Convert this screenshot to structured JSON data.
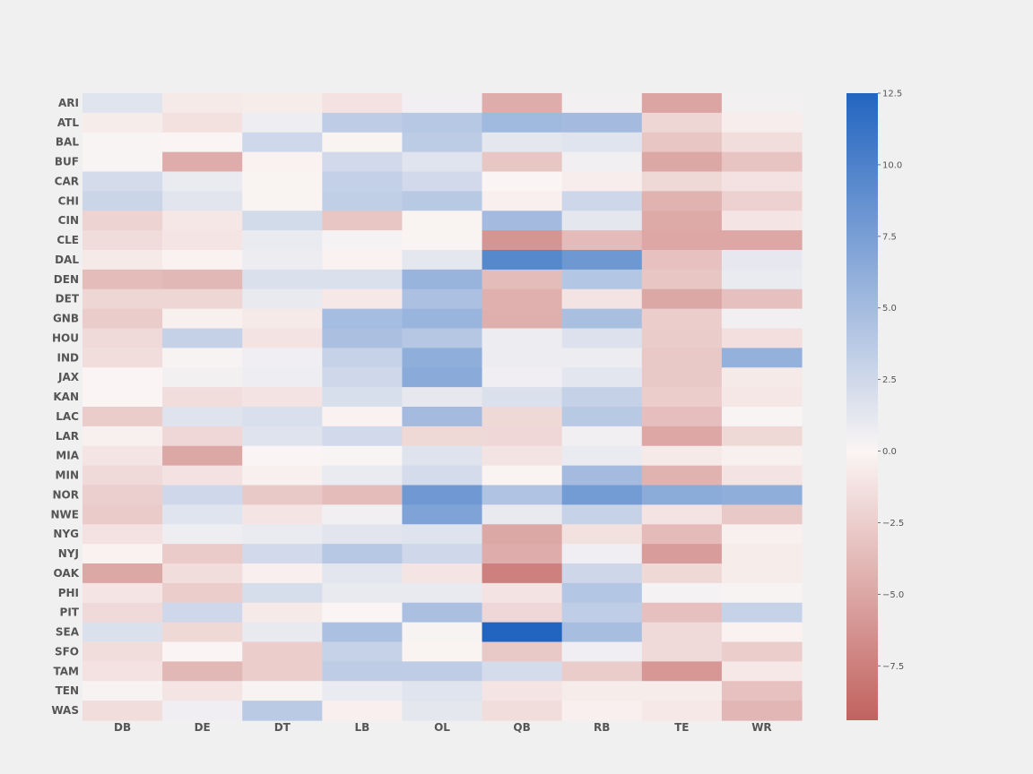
{
  "chart_data": {
    "type": "heatmap",
    "title": "",
    "xlabel": "",
    "ylabel": "",
    "columns": [
      "DB",
      "DE",
      "DT",
      "LB",
      "OL",
      "QB",
      "RB",
      "TE",
      "WR"
    ],
    "rows": [
      "ARI",
      "ATL",
      "BAL",
      "BUF",
      "CAR",
      "CHI",
      "CIN",
      "CLE",
      "DAL",
      "DEN",
      "DET",
      "GNB",
      "HOU",
      "IND",
      "JAX",
      "KAN",
      "LAC",
      "LAR",
      "MIA",
      "MIN",
      "NOR",
      "NWE",
      "NYG",
      "NYJ",
      "OAK",
      "PHI",
      "PIT",
      "SEA",
      "SFO",
      "TAM",
      "TEN",
      "WAS"
    ],
    "values": [
      [
        1.5,
        -0.7,
        -0.6,
        -1.2,
        0.5,
        -4.6,
        0.4,
        -5.1,
        0.4
      ],
      [
        -0.6,
        -1.3,
        0.7,
        3.5,
        3.9,
        5.2,
        5.0,
        -2.0,
        -0.5
      ],
      [
        0.1,
        0.0,
        2.5,
        -0.1,
        3.6,
        1.2,
        1.5,
        -3.0,
        -1.5
      ],
      [
        0.1,
        -4.7,
        -0.2,
        2.4,
        1.5,
        -3.0,
        0.5,
        -4.9,
        -3.2
      ],
      [
        2.2,
        0.9,
        -0.1,
        3.2,
        2.4,
        0.0,
        -0.5,
        -1.8,
        -1.2
      ],
      [
        2.8,
        1.4,
        -0.1,
        3.3,
        3.8,
        -0.4,
        2.6,
        -4.3,
        -2.3
      ],
      [
        -2.2,
        -0.9,
        2.3,
        -3.0,
        -0.1,
        5.0,
        1.2,
        -4.8,
        -1.0
      ],
      [
        -1.6,
        -1.0,
        0.9,
        0.3,
        -0.1,
        -6.1,
        -3.7,
        -5.0,
        -5.0
      ],
      [
        -0.7,
        -0.2,
        0.8,
        -0.2,
        1.2,
        9.5,
        8.1,
        -3.3,
        1.1
      ],
      [
        -3.6,
        -3.9,
        1.8,
        1.8,
        5.7,
        -3.6,
        4.1,
        -3.0,
        0.9
      ],
      [
        -2.0,
        -2.0,
        1.0,
        -0.8,
        4.5,
        -4.4,
        -1.1,
        -4.9,
        -3.4
      ],
      [
        -2.6,
        -0.3,
        -0.7,
        4.9,
        5.6,
        -4.5,
        4.7,
        -2.5,
        0.5
      ],
      [
        -1.7,
        3.1,
        -1.1,
        4.6,
        4.0,
        0.8,
        1.7,
        -2.6,
        -1.4
      ],
      [
        -1.5,
        0.2,
        0.6,
        3.0,
        6.2,
        0.8,
        0.8,
        -2.8,
        5.9
      ],
      [
        0.0,
        0.4,
        0.7,
        2.5,
        6.5,
        0.6,
        1.3,
        -2.8,
        -0.7
      ],
      [
        0.0,
        -1.5,
        -1.1,
        2.0,
        1.1,
        1.8,
        3.1,
        -2.5,
        -0.9
      ],
      [
        -2.6,
        1.6,
        1.9,
        -0.2,
        5.0,
        -1.8,
        3.8,
        -3.5,
        0.1
      ],
      [
        -0.3,
        -1.9,
        1.6,
        2.4,
        -1.8,
        -1.9,
        0.5,
        -5.0,
        -1.8
      ],
      [
        -1.0,
        -4.9,
        0.0,
        0.1,
        1.6,
        -1.1,
        0.9,
        -0.7,
        -0.3
      ],
      [
        -1.7,
        -1.2,
        -0.3,
        0.9,
        2.2,
        -0.1,
        5.0,
        -4.3,
        -1.1
      ],
      [
        -2.4,
        2.5,
        -2.8,
        -3.6,
        8.0,
        4.3,
        7.8,
        6.4,
        6.2
      ],
      [
        -2.7,
        1.5,
        -1.0,
        0.5,
        7.1,
        1.0,
        3.0,
        -1.1,
        -2.8
      ],
      [
        -1.2,
        0.7,
        0.9,
        1.4,
        1.6,
        -4.9,
        -1.3,
        -3.7,
        -0.3
      ],
      [
        -0.2,
        -2.7,
        2.4,
        3.9,
        2.5,
        -4.7,
        0.6,
        -5.6,
        -0.6
      ],
      [
        -4.9,
        -1.5,
        -0.4,
        1.3,
        -1.0,
        -7.5,
        2.6,
        -1.8,
        -0.6
      ],
      [
        -1.0,
        -2.5,
        2.1,
        1.0,
        1.0,
        -1.1,
        4.1,
        0.3,
        0.2
      ],
      [
        -1.7,
        2.5,
        -0.7,
        0.0,
        4.6,
        -1.9,
        3.4,
        -3.4,
        3.0
      ],
      [
        1.8,
        -1.8,
        1.0,
        4.5,
        0.2,
        12.5,
        4.8,
        -1.7,
        -0.2
      ],
      [
        -1.5,
        0.0,
        -2.5,
        3.0,
        -0.1,
        -2.8,
        0.6,
        -1.7,
        -2.5
      ],
      [
        -1.2,
        -3.9,
        -2.5,
        3.5,
        3.5,
        2.2,
        -2.6,
        -6.0,
        -0.8
      ],
      [
        0.2,
        -1.0,
        0.2,
        0.9,
        1.5,
        -1.0,
        -0.6,
        -0.6,
        -3.3
      ],
      [
        -1.5,
        0.6,
        3.7,
        -0.4,
        1.2,
        -1.5,
        -0.4,
        -0.8,
        -4.0
      ]
    ],
    "colorbar": {
      "vmin": -9.4,
      "vmax": 12.5,
      "ticks": [
        12.5,
        10.0,
        7.5,
        5.0,
        2.5,
        0.0,
        -2.5,
        -5.0,
        -7.5
      ],
      "tick_labels": [
        "12.5",
        "10.0",
        "7.5",
        "5.0",
        "2.5",
        "0.0",
        "−2.5",
        "−5.0",
        "−7.5"
      ],
      "colormap": [
        "#c1625f",
        "#faf5f4",
        "#2265c0"
      ]
    }
  }
}
